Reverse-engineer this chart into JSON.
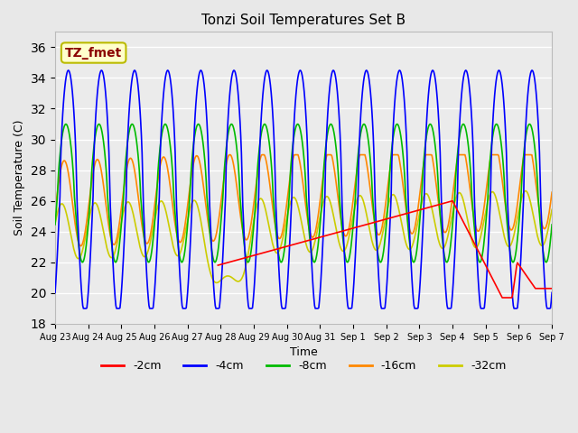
{
  "title": "Tonzi Soil Temperatures Set B",
  "xlabel": "Time",
  "ylabel": "Soil Temperature (C)",
  "ylim": [
    18,
    37
  ],
  "yticks": [
    18,
    20,
    22,
    24,
    26,
    28,
    30,
    32,
    34,
    36
  ],
  "annotation_text": "TZ_fmet",
  "annotation_color": "#8B0000",
  "annotation_bg": "#FFFFCC",
  "annotation_border": "#BBBB00",
  "bg_color": "#E8E8E8",
  "plot_bg": "#EBEBEB",
  "grid_color": "#FFFFFF",
  "series": {
    "2cm": {
      "color": "#FF0000",
      "lw": 1.2
    },
    "4cm": {
      "color": "#0000FF",
      "lw": 1.2
    },
    "8cm": {
      "color": "#00BB00",
      "lw": 1.2
    },
    "16cm": {
      "color": "#FF8800",
      "lw": 1.2
    },
    "32cm": {
      "color": "#CCCC00",
      "lw": 1.2
    }
  },
  "legend_labels": [
    "-2cm",
    "-4cm",
    "-8cm",
    "-16cm",
    "-32cm"
  ],
  "legend_colors": [
    "#FF0000",
    "#0000FF",
    "#00BB00",
    "#FF8800",
    "#CCCC00"
  ],
  "x_tick_labels": [
    "Aug 23",
    "Aug 24",
    "Aug 25",
    "Aug 26",
    "Aug 27",
    "Aug 28",
    "Aug 29",
    "Aug 30",
    "Aug 31",
    "Sep 1",
    "Sep 2",
    "Sep 3",
    "Sep 4",
    "Sep 5",
    "Sep 6",
    "Sep 7"
  ]
}
